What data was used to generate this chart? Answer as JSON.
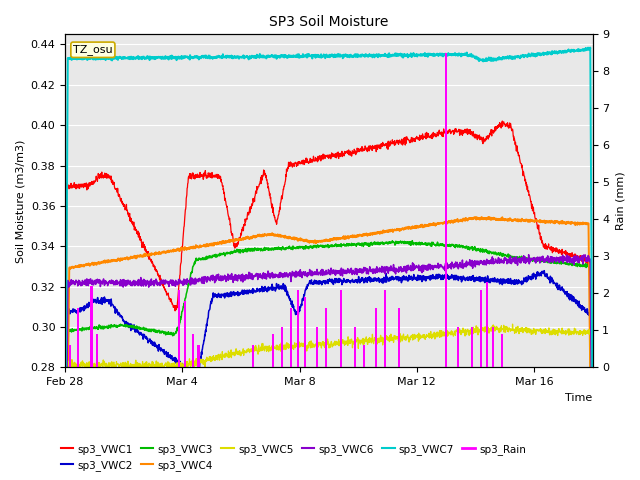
{
  "title": "SP3 Soil Moisture",
  "ylabel_left": "Soil Moisture (m3/m3)",
  "ylabel_right": "Rain (mm)",
  "xlabel": "Time",
  "watermark": "TZ_osu",
  "ylim_left": [
    0.28,
    0.445
  ],
  "ylim_right": [
    0.0,
    9.0
  ],
  "yticks_left": [
    0.28,
    0.3,
    0.32,
    0.34,
    0.36,
    0.38,
    0.4,
    0.42,
    0.44
  ],
  "yticks_right": [
    0.0,
    1.0,
    2.0,
    3.0,
    4.0,
    5.0,
    6.0,
    7.0,
    8.0,
    9.0
  ],
  "xtick_positions": [
    0,
    4,
    8,
    12,
    16
  ],
  "xtick_labels": [
    "Feb 28",
    "Mar 4",
    "Mar 8",
    "Mar 12",
    "Mar 16"
  ],
  "colors": {
    "VWC1": "#ff0000",
    "VWC2": "#0000cc",
    "VWC3": "#00bb00",
    "VWC4": "#ff8800",
    "VWC5": "#dddd00",
    "VWC6": "#8800cc",
    "VWC7": "#00cccc",
    "Rain": "#ff00ff"
  },
  "fig_bg": "#ffffff",
  "axes_bg": "#e8e8e8",
  "total_days": 18,
  "n_points": 1800,
  "rain_events": [
    [
      0.15,
      0.6
    ],
    [
      0.45,
      1.6
    ],
    [
      0.9,
      2.2
    ],
    [
      1.1,
      0.9
    ],
    [
      3.9,
      2.1
    ],
    [
      4.1,
      1.8
    ],
    [
      4.35,
      0.9
    ],
    [
      4.55,
      0.6
    ],
    [
      6.4,
      0.6
    ],
    [
      7.1,
      0.9
    ],
    [
      7.4,
      1.1
    ],
    [
      7.7,
      1.6
    ],
    [
      7.95,
      2.1
    ],
    [
      8.2,
      1.9
    ],
    [
      8.6,
      1.1
    ],
    [
      8.9,
      1.6
    ],
    [
      9.4,
      2.1
    ],
    [
      9.9,
      1.1
    ],
    [
      10.2,
      0.6
    ],
    [
      10.6,
      1.6
    ],
    [
      10.9,
      2.1
    ],
    [
      11.4,
      1.6
    ],
    [
      13.0,
      8.5
    ],
    [
      13.4,
      1.1
    ],
    [
      13.9,
      1.1
    ],
    [
      14.2,
      2.1
    ],
    [
      14.4,
      2.3
    ],
    [
      14.6,
      1.1
    ],
    [
      14.9,
      0.9
    ]
  ]
}
